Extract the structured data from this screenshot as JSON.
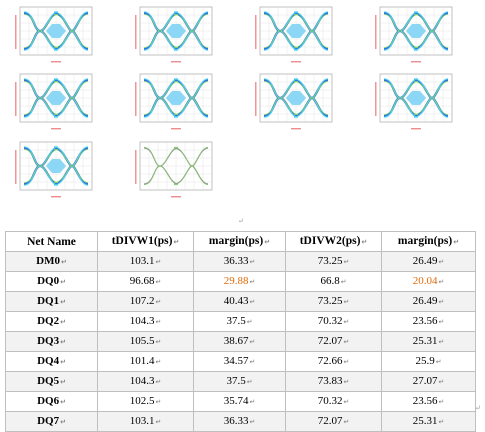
{
  "eye_diagrams": [
    {
      "id": "eye-1",
      "style": "color"
    },
    {
      "id": "eye-2",
      "style": "color"
    },
    {
      "id": "eye-3",
      "style": "color"
    },
    {
      "id": "eye-4",
      "style": "color"
    },
    {
      "id": "eye-5",
      "style": "color"
    },
    {
      "id": "eye-6",
      "style": "color"
    },
    {
      "id": "eye-7",
      "style": "color"
    },
    {
      "id": "eye-8",
      "style": "color"
    },
    {
      "id": "eye-9",
      "style": "color"
    },
    {
      "id": "eye-10",
      "style": "gray"
    }
  ],
  "colors": {
    "eye_blue": "#1f5fd6",
    "eye_cyan": "#4fd6f2",
    "eye_green": "#7fd860",
    "eye_mask": "#7fd3f5",
    "axis_label": "#e04040",
    "highlight": "#e36c0a"
  },
  "table": {
    "headers": {
      "net": "Net Name",
      "tdivw1": "tDIVW1(ps)",
      "margin1": "margin(ps)",
      "tdivw2": "tDIVW2(ps)",
      "margin2": "margin(ps)"
    },
    "cell_suffix": "↵",
    "rows": [
      {
        "net": "DM0",
        "tdivw1": "103.1",
        "margin1": "36.33",
        "tdivw2": "73.25",
        "margin2": "26.49"
      },
      {
        "net": "DQ0",
        "tdivw1": "96.68",
        "margin1": "29.88",
        "tdivw2": "66.8",
        "margin2": "20.04"
      },
      {
        "net": "DQ1",
        "tdivw1": "107.2",
        "margin1": "40.43",
        "tdivw2": "73.25",
        "margin2": "26.49"
      },
      {
        "net": "DQ2",
        "tdivw1": "104.3",
        "margin1": "37.5",
        "tdivw2": "70.32",
        "margin2": "23.56"
      },
      {
        "net": "DQ3",
        "tdivw1": "105.5",
        "margin1": "38.67",
        "tdivw2": "72.07",
        "margin2": "25.31"
      },
      {
        "net": "DQ4",
        "tdivw1": "101.4",
        "margin1": "34.57",
        "tdivw2": "72.66",
        "margin2": "25.9"
      },
      {
        "net": "DQ5",
        "tdivw1": "104.3",
        "margin1": "37.5",
        "tdivw2": "73.83",
        "margin2": "27.07"
      },
      {
        "net": "DQ6",
        "tdivw1": "102.5",
        "margin1": "35.74",
        "tdivw2": "70.32",
        "margin2": "23.56"
      },
      {
        "net": "DQ7",
        "tdivw1": "103.1",
        "margin1": "36.33",
        "tdivw2": "72.07",
        "margin2": "25.31"
      }
    ],
    "highlighted_cells": [
      {
        "net": "DQ0",
        "column": "margin1"
      },
      {
        "net": "DQ0",
        "column": "margin2"
      }
    ]
  }
}
